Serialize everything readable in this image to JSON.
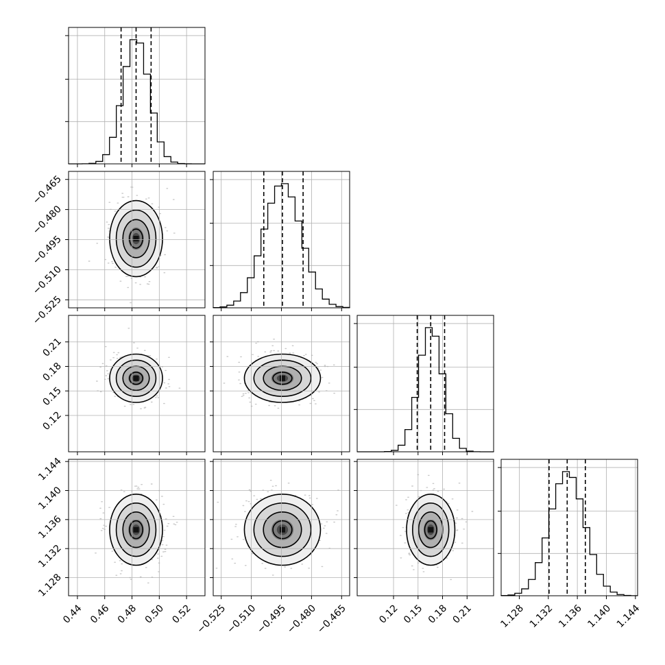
{
  "chart_data": {
    "type": "corner",
    "grid": true,
    "colors": {
      "line": "#000000",
      "grid": "#b0b0b0",
      "points": "#9a9a9a",
      "frame": "#000000"
    },
    "parameters": [
      {
        "mean": 0.483,
        "sd": 0.0095,
        "range": [
          0.4335,
          0.5335
        ],
        "ticks": [
          "0.44",
          "0.46",
          "0.48",
          "0.50",
          "0.52"
        ],
        "quantiles": [
          0.472,
          0.483,
          0.494
        ]
      },
      {
        "mean": -0.4945,
        "sd": 0.0093,
        "range": [
          -0.529,
          -0.461
        ],
        "ticks": [
          "−0.525",
          "−0.510",
          "−0.495",
          "−0.480",
          "−0.465"
        ],
        "quantiles": [
          -0.5038,
          -0.4945,
          -0.4842
        ]
      },
      {
        "mean": 0.1655,
        "sd": 0.0145,
        "range": [
          0.0755,
          0.2425
        ],
        "ticks": [
          "0.12",
          "0.15",
          "0.18",
          "0.21"
        ],
        "quantiles": [
          0.149,
          0.1655,
          0.1825
        ]
      },
      {
        "mean": 1.1346,
        "sd": 0.0024,
        "range": [
          1.1255,
          1.1443
        ],
        "ticks": [
          "1.128",
          "1.132",
          "1.136",
          "1.140",
          "1.144"
        ],
        "quantiles": [
          1.1321,
          1.1346,
          1.1371
        ]
      }
    ],
    "contour_levels_sigma": [
      0.5,
      1.0,
      1.5,
      2.0
    ]
  }
}
